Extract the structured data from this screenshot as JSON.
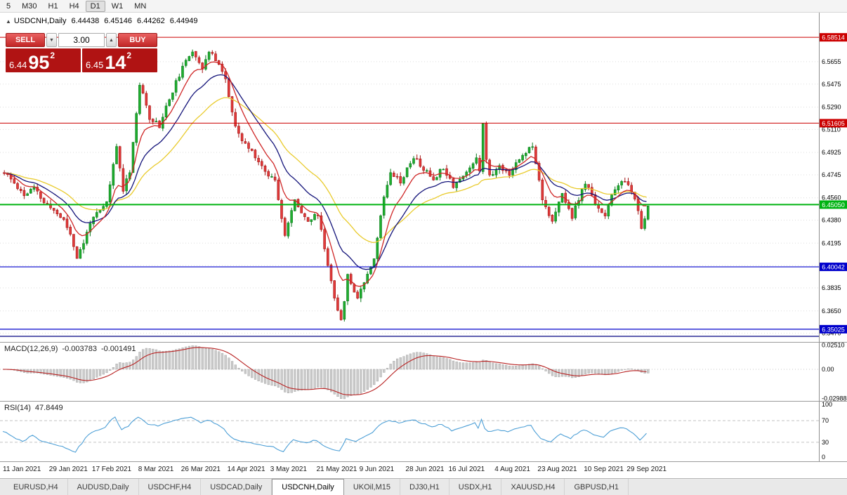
{
  "toolbar": {
    "timeframes": [
      "5",
      "M30",
      "H1",
      "H4",
      "D1",
      "W1",
      "MN"
    ],
    "active": "D1"
  },
  "order_panel": {
    "sell_label": "SELL",
    "buy_label": "BUY",
    "volume": "3.00",
    "volume_down_icon": "▼",
    "volume_up_icon": "▲",
    "bid": {
      "prefix": "6.44",
      "big": "95",
      "sup": "2"
    },
    "ask": {
      "prefix": "6.45",
      "big": "14",
      "sup": "2"
    }
  },
  "chart": {
    "marker": "▲",
    "title": "USDCNH,Daily",
    "ohlc": {
      "open": "6.44438",
      "high": "6.45146",
      "low": "6.44262",
      "close": "6.44949"
    }
  },
  "chart_data": {
    "type": "candlestick",
    "symbol": "USDCNH",
    "period": "Daily",
    "bars": 196,
    "ylim": [
      6.34,
      6.605
    ],
    "price_path": [
      [
        0,
        6.476
      ],
      [
        3,
        6.468
      ],
      [
        6,
        6.458
      ],
      [
        9,
        6.464
      ],
      [
        12,
        6.452
      ],
      [
        15,
        6.446
      ],
      [
        18,
        6.438
      ],
      [
        20,
        6.427
      ],
      [
        22,
        6.408
      ],
      [
        24,
        6.419
      ],
      [
        26,
        6.437
      ],
      [
        29,
        6.445
      ],
      [
        31,
        6.452
      ],
      [
        34,
        6.497
      ],
      [
        36,
        6.463
      ],
      [
        38,
        6.478
      ],
      [
        41,
        6.547
      ],
      [
        44,
        6.521
      ],
      [
        47,
        6.514
      ],
      [
        49,
        6.529
      ],
      [
        53,
        6.555
      ],
      [
        57,
        6.575
      ],
      [
        60,
        6.561
      ],
      [
        62,
        6.573
      ],
      [
        65,
        6.565
      ],
      [
        67,
        6.551
      ],
      [
        70,
        6.512
      ],
      [
        72,
        6.502
      ],
      [
        76,
        6.49
      ],
      [
        79,
        6.477
      ],
      [
        82,
        6.471
      ],
      [
        85,
        6.426
      ],
      [
        88,
        6.454
      ],
      [
        92,
        6.437
      ],
      [
        95,
        6.443
      ],
      [
        98,
        6.402
      ],
      [
        100,
        6.377
      ],
      [
        102,
        6.356
      ],
      [
        104,
        6.393
      ],
      [
        107,
        6.376
      ],
      [
        109,
        6.389
      ],
      [
        112,
        6.408
      ],
      [
        115,
        6.457
      ],
      [
        117,
        6.478
      ],
      [
        120,
        6.469
      ],
      [
        124,
        6.489
      ],
      [
        127,
        6.479
      ],
      [
        130,
        6.471
      ],
      [
        133,
        6.481
      ],
      [
        136,
        6.466
      ],
      [
        140,
        6.476
      ],
      [
        143,
        6.489
      ],
      [
        144,
        6.478
      ],
      [
        145,
        6.517
      ],
      [
        146,
        6.488
      ],
      [
        147,
        6.473
      ],
      [
        150,
        6.481
      ],
      [
        153,
        6.476
      ],
      [
        157,
        6.49
      ],
      [
        160,
        6.499
      ],
      [
        163,
        6.456
      ],
      [
        166,
        6.436
      ],
      [
        169,
        6.459
      ],
      [
        172,
        6.441
      ],
      [
        176,
        6.468
      ],
      [
        179,
        6.452
      ],
      [
        182,
        6.441
      ],
      [
        185,
        6.464
      ],
      [
        188,
        6.469
      ],
      [
        190,
        6.462
      ],
      [
        192,
        6.444
      ],
      [
        193,
        6.431
      ],
      [
        195,
        6.4495
      ]
    ],
    "y_ticks": [
      "6.5655",
      "6.5475",
      "6.5290",
      "6.5110",
      "6.4925",
      "6.4745",
      "6.4560",
      "6.4380",
      "6.4195",
      "6.4015",
      "6.3835",
      "6.3650",
      "6.3470"
    ],
    "levels": [
      {
        "price": 6.58514,
        "label": "6.58514",
        "color": "#cc0000",
        "width": 1
      },
      {
        "price": 6.51605,
        "label": "6.51605",
        "color": "#cc0000",
        "width": 1
      },
      {
        "price": 6.4505,
        "label": "6.45050",
        "color": "#00b312",
        "width": 2
      },
      {
        "price": 6.40042,
        "label": "6.40042",
        "color": "#0000cc",
        "width": 1.2
      },
      {
        "price": 6.35025,
        "label": "6.35025",
        "color": "#0000cc",
        "width": 1.2
      },
      {
        "price": 6.3445,
        "label": "",
        "color": "#000080",
        "width": 1.2
      }
    ],
    "x_labels": [
      {
        "i": 0,
        "t": "11 Jan 2021"
      },
      {
        "i": 14,
        "t": "29 Jan 2021"
      },
      {
        "i": 27,
        "t": "17 Feb 2021"
      },
      {
        "i": 41,
        "t": "8 Mar 2021"
      },
      {
        "i": 54,
        "t": "26 Mar 2021"
      },
      {
        "i": 68,
        "t": "14 Apr 2021"
      },
      {
        "i": 81,
        "t": "3 May 2021"
      },
      {
        "i": 95,
        "t": "21 May 2021"
      },
      {
        "i": 108,
        "t": "9 Jun 2021"
      },
      {
        "i": 122,
        "t": "28 Jun 2021"
      },
      {
        "i": 135,
        "t": "16 Jul 2021"
      },
      {
        "i": 149,
        "t": "4 Aug 2021"
      },
      {
        "i": 162,
        "t": "23 Aug 2021"
      },
      {
        "i": 176,
        "t": "10 Sep 2021"
      },
      {
        "i": 189,
        "t": "29 Sep 2021"
      }
    ],
    "moving_averages": [
      {
        "name": "slow",
        "period": 34,
        "color": "#e9cb2d"
      },
      {
        "name": "medium",
        "period": 18,
        "color": "#14147a"
      },
      {
        "name": "fast",
        "period": 9,
        "color": "#cf2626"
      }
    ],
    "candle_colors": {
      "up": "#1fae2e",
      "up_border": "#0b7a1d",
      "down": "#e23b3b",
      "down_border": "#a31515"
    }
  },
  "macd": {
    "label": "MACD(12,26,9)",
    "value_main": "-0.003783",
    "value_signal": "-0.001491",
    "params": {
      "fast": 12,
      "slow": 26,
      "signal": 9
    },
    "axis": [
      {
        "text": "0.02510",
        "v": 0.0251
      },
      {
        "text": "0.00",
        "v": 0
      },
      {
        "text": "-0.02988",
        "v": -0.02988
      }
    ]
  },
  "rsi": {
    "label": "RSI(14)",
    "value": "47.8449",
    "period": 14,
    "axis": [
      {
        "text": "100",
        "v": 100
      },
      {
        "text": "70",
        "v": 70,
        "level": true
      },
      {
        "text": "30",
        "v": 30,
        "level": true
      },
      {
        "text": "0",
        "v": 0
      }
    ]
  },
  "tabs": {
    "items": [
      "EURUSD,H4",
      "AUDUSD,Daily",
      "USDCHF,H4",
      "USDCAD,Daily",
      "USDCNH,Daily",
      "UKOil,M15",
      "DJ30,H1",
      "USDX,H1",
      "XAUUSD,H4",
      "GBPUSD,H1"
    ],
    "active": "USDCNH,Daily"
  }
}
